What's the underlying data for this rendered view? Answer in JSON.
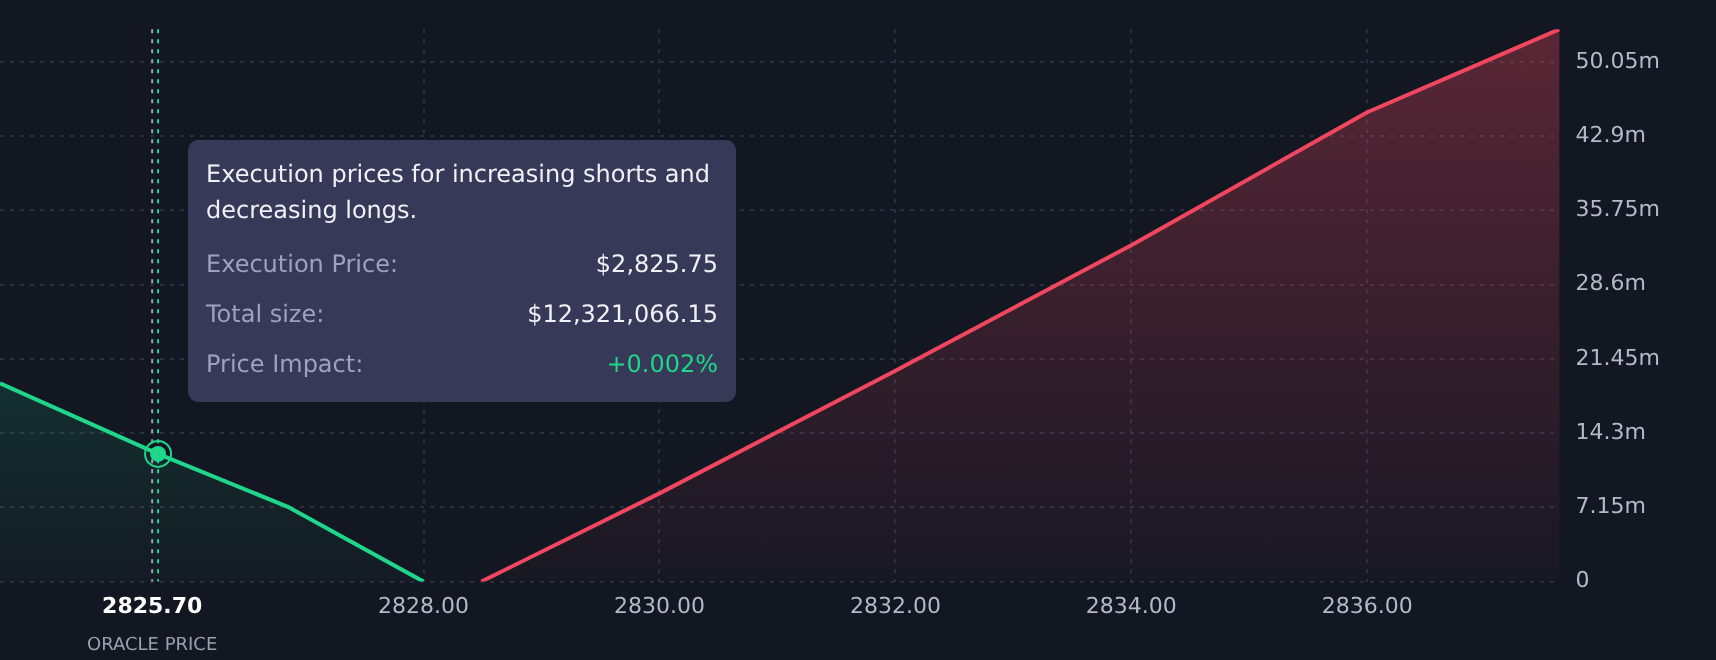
{
  "chart_data": {
    "type": "area",
    "series": [
      {
        "color": "#1fd68a",
        "x": [
          2824.41,
          2825.75,
          2826.85,
          2828.0
        ],
        "values": [
          19.1,
          12.3,
          7.2,
          0
        ]
      },
      {
        "color": "#f0475f",
        "x": [
          2828.49,
          2830.0,
          2832.0,
          2834.0,
          2836.0,
          2837.63
        ],
        "values": [
          0,
          8.5,
          20.3,
          32.4,
          45.2,
          53.2
        ]
      }
    ],
    "xlim": [
      2824.41,
      2837.63
    ],
    "xticks": [
      {
        "value": 2825.7,
        "label": "2825.70"
      },
      {
        "value": 2828,
        "label": "2828.00"
      },
      {
        "value": 2830,
        "label": "2830.00"
      },
      {
        "value": 2832,
        "label": "2832.00"
      },
      {
        "value": 2834,
        "label": "2834.00"
      },
      {
        "value": 2836,
        "label": "2836.00"
      }
    ],
    "ylim": [
      0,
      53.2
    ],
    "yticks": [
      0,
      {
        "value": 7.15,
        "label": "7.15m"
      },
      {
        "value": 14.3,
        "label": "14.3m"
      },
      {
        "value": 21.45,
        "label": "21.45m"
      },
      {
        "value": 28.6,
        "label": "28.6m"
      },
      {
        "value": 35.75,
        "label": "35.75m"
      },
      {
        "value": 42.9,
        "label": "42.9m"
      },
      {
        "value": 50.05,
        "label": "50.05m"
      }
    ],
    "ref_lines": [
      {
        "axis": "x",
        "value": 2825.7,
        "label": "ORACLE PRICE",
        "color": "#9aa0b4",
        "line_style": "dotted"
      },
      {
        "axis": "x",
        "value": 2825.75,
        "color": "#1fd68a",
        "line_style": "dotted"
      }
    ],
    "annotations": [
      "Execution prices for increasing shorts and decreasing longs.",
      "Execution Price:",
      "$2,825.75",
      "Total size:",
      "$12,321,066.15",
      "Price Impact:",
      "+0.002%"
    ],
    "grid": true,
    "legend": false,
    "marker": "none",
    "line_style": "solid"
  }
}
